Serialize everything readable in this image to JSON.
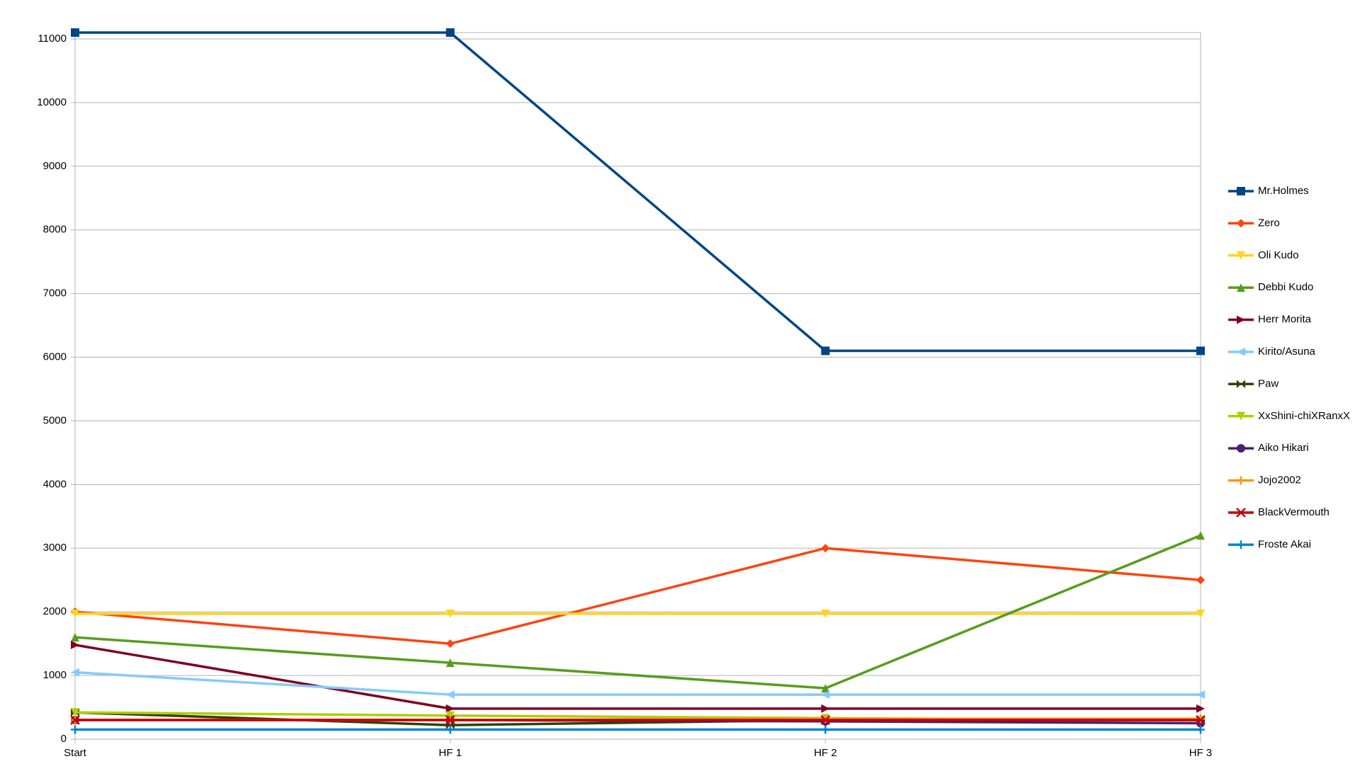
{
  "chart_data": {
    "type": "line",
    "categories": [
      "Start",
      "HF 1",
      "HF 2",
      "HF 3"
    ],
    "ylim": [
      0,
      11100
    ],
    "yticks": [
      0,
      1000,
      2000,
      3000,
      4000,
      5000,
      6000,
      7000,
      8000,
      9000,
      10000,
      11000
    ],
    "grid": true,
    "legend": "right",
    "series": [
      {
        "name": "Mr.Holmes",
        "color": "#004586",
        "marker": "square",
        "values": [
          11100,
          11100,
          6100,
          6100
        ]
      },
      {
        "name": "Zero",
        "color": "#ff420e",
        "marker": "diamond",
        "values": [
          2000,
          1500,
          3000,
          2500
        ]
      },
      {
        "name": "Oli Kudo",
        "color": "#ffd320",
        "marker": "triangle-down",
        "values": [
          1970,
          1970,
          1970,
          1970
        ]
      },
      {
        "name": "Debbi Kudo",
        "color": "#579d1c",
        "marker": "triangle-up",
        "values": [
          1600,
          1200,
          800,
          3200
        ]
      },
      {
        "name": "Herr Morita",
        "color": "#7e0021",
        "marker": "triangle-right",
        "values": [
          1480,
          480,
          480,
          480
        ]
      },
      {
        "name": "Kirito/Asuna",
        "color": "#83caff",
        "marker": "triangle-left",
        "values": [
          1050,
          700,
          700,
          700
        ]
      },
      {
        "name": "Paw",
        "color": "#314004",
        "marker": "bowtie",
        "values": [
          420,
          220,
          300,
          300
        ]
      },
      {
        "name": "XxShini-chiXRanxX",
        "color": "#aecf00",
        "marker": "triangle-down",
        "values": [
          420,
          370,
          330,
          300
        ]
      },
      {
        "name": "Aiko Hikari",
        "color": "#4b1f6f",
        "marker": "circle",
        "values": [
          300,
          300,
          280,
          250
        ]
      },
      {
        "name": "Jojo2002",
        "color": "#ff950e",
        "marker": "plus",
        "values": [
          300,
          300,
          320,
          320
        ]
      },
      {
        "name": "BlackVermouth",
        "color": "#c5000b",
        "marker": "cross",
        "values": [
          300,
          300,
          300,
          300
        ]
      },
      {
        "name": "Froste Akai",
        "color": "#0084d1",
        "marker": "plus",
        "values": [
          150,
          150,
          150,
          150
        ]
      }
    ]
  }
}
